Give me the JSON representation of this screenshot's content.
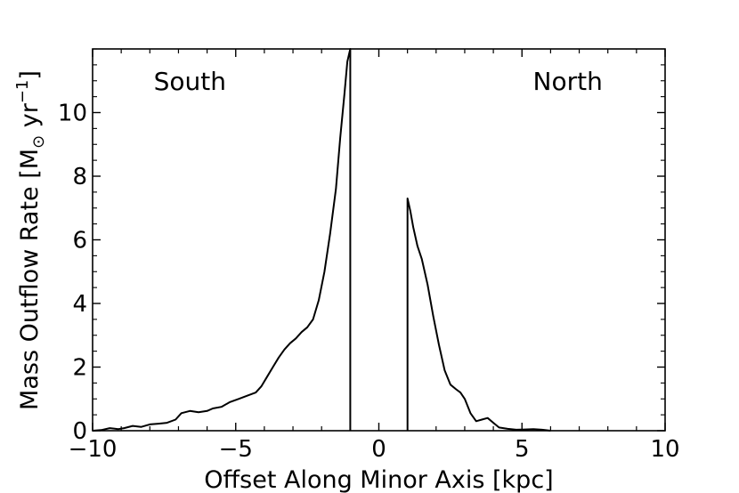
{
  "chart_data": {
    "type": "line",
    "xlabel": "Offset Along Minor Axis [kpc]",
    "ylabel_parts": {
      "main": "Mass Outflow Rate [M",
      "sub": "⊙",
      "unit": " yr",
      "sup": "−1",
      "close": "]"
    },
    "xlim": [
      -10,
      10
    ],
    "ylim": [
      0,
      12
    ],
    "grid": false,
    "x_ticks": [
      -10,
      -5,
      0,
      5,
      10
    ],
    "x_tick_labels": [
      "−10",
      "−5",
      "0",
      "5",
      "10"
    ],
    "y_ticks": [
      0,
      2,
      4,
      6,
      8,
      10
    ],
    "y_tick_labels": [
      "0",
      "2",
      "4",
      "6",
      "8",
      "10"
    ],
    "annotations": [
      {
        "text": "South",
        "x": -6.6,
        "y": 11.0
      },
      {
        "text": "North",
        "x": 6.6,
        "y": 11.0
      }
    ],
    "series": [
      {
        "segments": [
          [
            [
              -10.0,
              0.0
            ],
            [
              -9.7,
              0.02
            ],
            [
              -9.4,
              0.08
            ],
            [
              -9.1,
              0.05
            ],
            [
              -8.9,
              0.08
            ],
            [
              -8.6,
              0.15
            ],
            [
              -8.3,
              0.12
            ],
            [
              -8.0,
              0.2
            ],
            [
              -7.7,
              0.22
            ],
            [
              -7.4,
              0.25
            ],
            [
              -7.1,
              0.35
            ],
            [
              -6.9,
              0.55
            ],
            [
              -6.6,
              0.62
            ],
            [
              -6.3,
              0.58
            ],
            [
              -6.0,
              0.62
            ],
            [
              -5.8,
              0.7
            ],
            [
              -5.5,
              0.75
            ],
            [
              -5.2,
              0.9
            ],
            [
              -4.9,
              1.0
            ],
            [
              -4.6,
              1.1
            ],
            [
              -4.3,
              1.2
            ],
            [
              -4.1,
              1.4
            ],
            [
              -3.9,
              1.7
            ],
            [
              -3.7,
              2.0
            ],
            [
              -3.5,
              2.3
            ],
            [
              -3.3,
              2.55
            ],
            [
              -3.1,
              2.75
            ],
            [
              -2.9,
              2.9
            ],
            [
              -2.7,
              3.1
            ],
            [
              -2.5,
              3.25
            ],
            [
              -2.3,
              3.5
            ],
            [
              -2.1,
              4.1
            ],
            [
              -1.9,
              5.0
            ],
            [
              -1.7,
              6.2
            ],
            [
              -1.5,
              7.6
            ],
            [
              -1.35,
              9.2
            ],
            [
              -1.2,
              10.6
            ],
            [
              -1.1,
              11.6
            ],
            [
              -1.0,
              12.0
            ],
            [
              -1.0,
              0.0
            ]
          ],
          [
            [
              1.0,
              0.0
            ],
            [
              1.0,
              7.3
            ],
            [
              1.1,
              6.9
            ],
            [
              1.2,
              6.4
            ],
            [
              1.35,
              5.8
            ],
            [
              1.5,
              5.4
            ],
            [
              1.7,
              4.6
            ],
            [
              1.9,
              3.6
            ],
            [
              2.1,
              2.7
            ],
            [
              2.3,
              1.9
            ],
            [
              2.5,
              1.45
            ],
            [
              2.7,
              1.3
            ],
            [
              2.85,
              1.2
            ],
            [
              3.0,
              1.0
            ],
            [
              3.2,
              0.55
            ],
            [
              3.4,
              0.3
            ],
            [
              3.6,
              0.35
            ],
            [
              3.8,
              0.4
            ],
            [
              4.0,
              0.25
            ],
            [
              4.2,
              0.1
            ],
            [
              4.5,
              0.06
            ],
            [
              4.8,
              0.03
            ],
            [
              5.1,
              0.04
            ],
            [
              5.4,
              0.05
            ],
            [
              5.7,
              0.03
            ],
            [
              6.0,
              0.0
            ]
          ]
        ]
      }
    ]
  }
}
